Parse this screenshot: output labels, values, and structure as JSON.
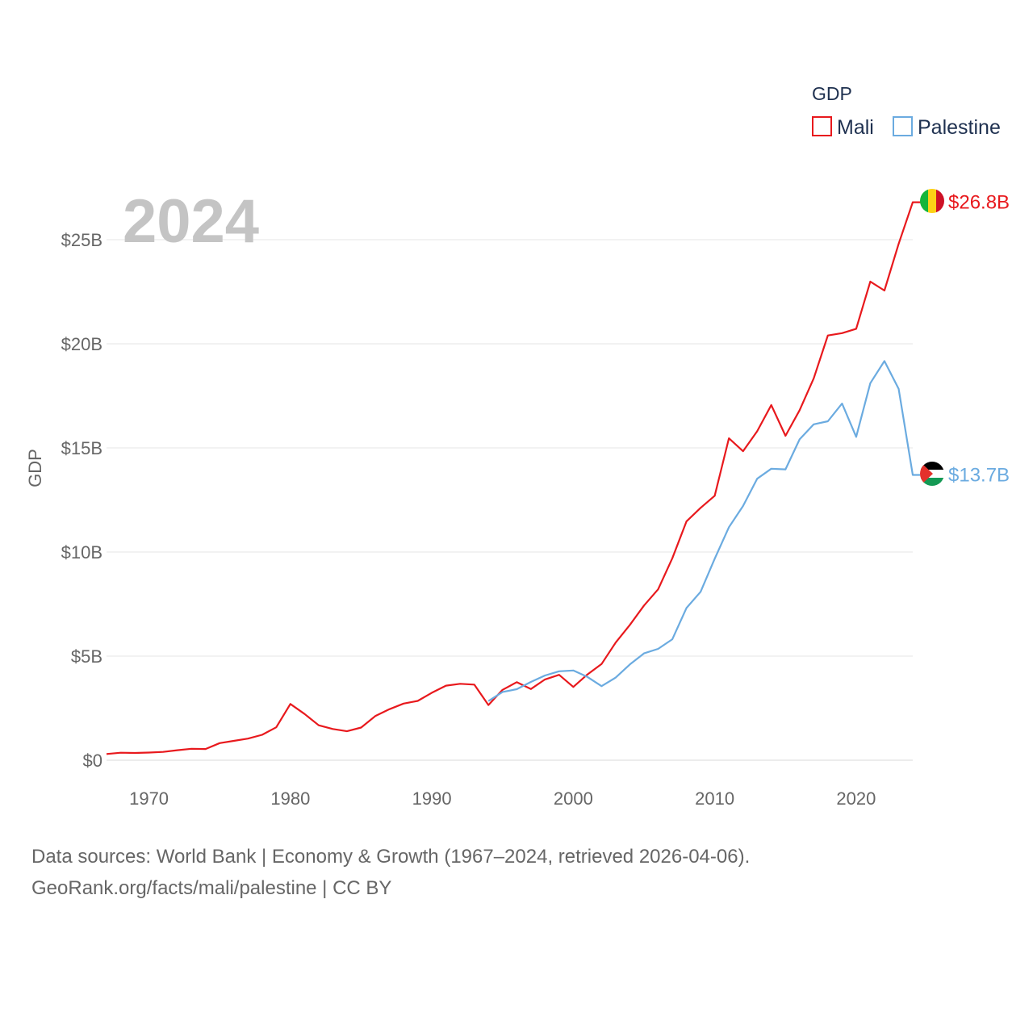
{
  "chart_data": {
    "type": "line",
    "title": "",
    "year_label": "2024",
    "xlabel": "",
    "ylabel": "GDP",
    "xlim": [
      1967,
      2024
    ],
    "ylim": [
      0,
      25
    ],
    "grid": true,
    "x_ticks": [
      {
        "value": 1970,
        "label": "1970"
      },
      {
        "value": 1980,
        "label": "1980"
      },
      {
        "value": 1990,
        "label": "1990"
      },
      {
        "value": 2000,
        "label": "2000"
      },
      {
        "value": 2010,
        "label": "2010"
      },
      {
        "value": 2020,
        "label": "2020"
      }
    ],
    "y_ticks": [
      {
        "value": 0,
        "label": "$0"
      },
      {
        "value": 5,
        "label": "$5B"
      },
      {
        "value": 10,
        "label": "$10B"
      },
      {
        "value": 15,
        "label": "$15B"
      },
      {
        "value": 20,
        "label": "$20B"
      },
      {
        "value": 25,
        "label": "$25B"
      }
    ],
    "legend": {
      "title": "GDP",
      "placement": "top-right"
    },
    "series": [
      {
        "name": "Mali",
        "color": "#e8191d",
        "end_label": "$26.8B",
        "flag": "mali-flag",
        "x": [
          1967,
          1968,
          1969,
          1970,
          1971,
          1972,
          1973,
          1974,
          1975,
          1976,
          1977,
          1978,
          1979,
          1980,
          1981,
          1982,
          1983,
          1984,
          1985,
          1986,
          1987,
          1988,
          1989,
          1990,
          1991,
          1992,
          1993,
          1994,
          1995,
          1996,
          1997,
          1998,
          1999,
          2000,
          2001,
          2002,
          2003,
          2004,
          2005,
          2006,
          2007,
          2008,
          2009,
          2010,
          2011,
          2012,
          2013,
          2014,
          2015,
          2016,
          2017,
          2018,
          2019,
          2020,
          2021,
          2022,
          2023,
          2024
        ],
        "values": [
          0.3,
          0.36,
          0.35,
          0.37,
          0.4,
          0.48,
          0.55,
          0.54,
          0.82,
          0.93,
          1.04,
          1.22,
          1.58,
          2.7,
          2.22,
          1.68,
          1.5,
          1.39,
          1.57,
          2.12,
          2.45,
          2.72,
          2.85,
          3.24,
          3.58,
          3.67,
          3.63,
          2.65,
          3.38,
          3.75,
          3.42,
          3.88,
          4.1,
          3.52,
          4.12,
          4.62,
          5.65,
          6.5,
          7.43,
          8.21,
          9.7,
          11.47,
          12.12,
          12.7,
          15.46,
          14.84,
          15.8,
          17.06,
          15.58,
          16.81,
          18.34,
          20.4,
          20.51,
          20.72,
          22.99,
          22.56,
          24.8,
          26.8
        ]
      },
      {
        "name": "Palestine",
        "color": "#6babe0",
        "end_label": "$13.7B",
        "flag": "palestine-flag",
        "x": [
          1994,
          1995,
          1996,
          1997,
          1998,
          1999,
          2000,
          2001,
          2002,
          2003,
          2004,
          2005,
          2006,
          2007,
          2008,
          2009,
          2010,
          2011,
          2012,
          2013,
          2014,
          2015,
          2016,
          2017,
          2018,
          2019,
          2020,
          2021,
          2022,
          2023,
          2024
        ],
        "values": [
          2.84,
          3.28,
          3.41,
          3.76,
          4.07,
          4.27,
          4.31,
          4.0,
          3.56,
          3.97,
          4.6,
          5.13,
          5.35,
          5.81,
          7.31,
          8.09,
          9.68,
          11.19,
          12.21,
          13.52,
          14.0,
          13.97,
          15.41,
          16.13,
          16.28,
          17.13,
          15.53,
          18.11,
          19.17,
          17.84,
          13.7
        ]
      }
    ]
  },
  "footer": {
    "source_line1": "Data sources: World Bank | Economy & Growth (1967–2024, retrieved 2026-04-06).",
    "source_line2": "GeoRank.org/facts/mali/palestine | CC BY"
  }
}
